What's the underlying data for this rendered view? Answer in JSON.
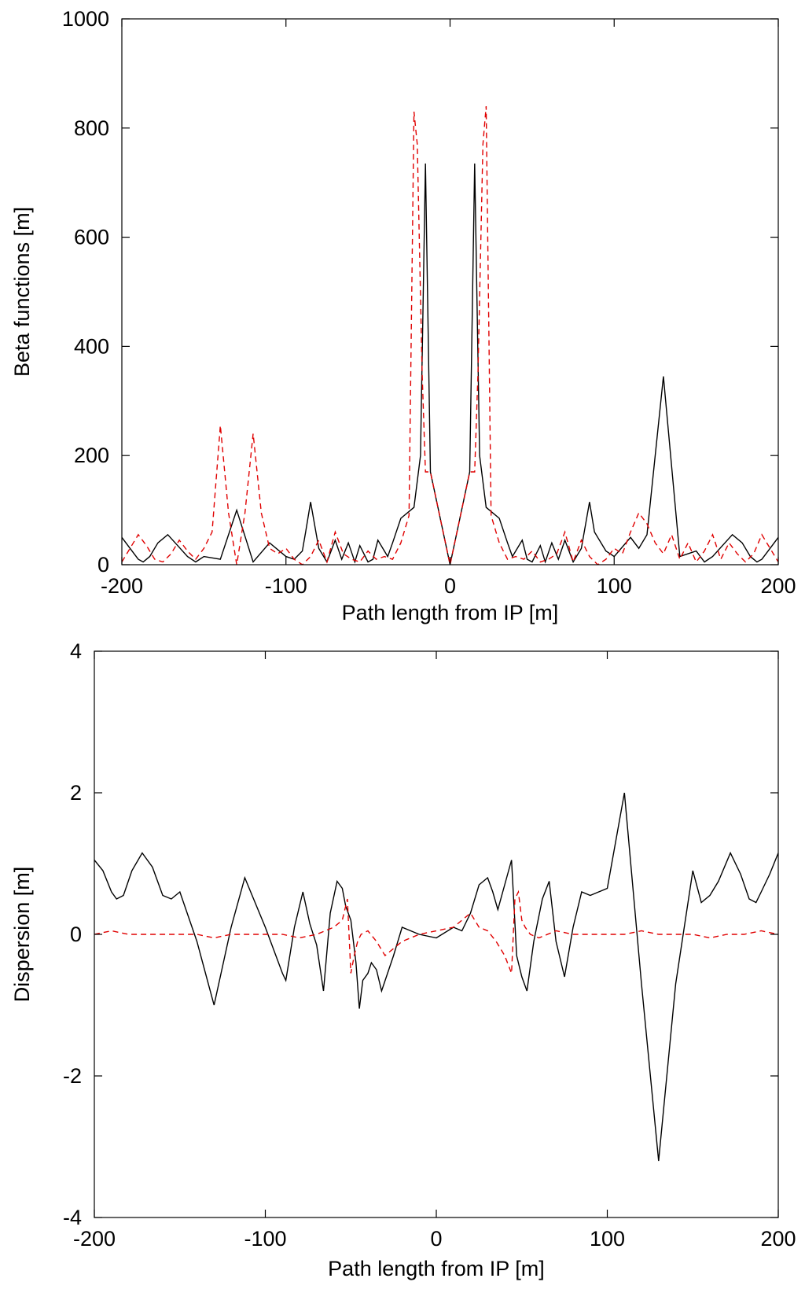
{
  "colors": {
    "solid_series": "#000000",
    "dashed_series": "#e00000"
  },
  "chart_data": [
    {
      "type": "line",
      "xlabel": "Path length from IP [m]",
      "ylabel": "Beta functions [m]",
      "xlim": [
        -200,
        200
      ],
      "ylim": [
        0,
        1000
      ],
      "xticks": [
        -200,
        -100,
        0,
        100,
        200
      ],
      "yticks": [
        0,
        200,
        400,
        600,
        800,
        1000
      ],
      "grid": false,
      "series": [
        {
          "style": "solid",
          "color": "#000000",
          "x": [
            -200,
            -195,
            -190,
            -187,
            -183,
            -178,
            -172,
            -166,
            -160,
            -155,
            -150,
            -140,
            -130,
            -120,
            -110,
            -100,
            -95,
            -90,
            -88,
            -85,
            -80,
            -75,
            -70,
            -66,
            -62,
            -58,
            -55,
            -50,
            -47,
            -44,
            -40,
            -38,
            -35,
            -30,
            -22,
            -18,
            -15,
            -12,
            0,
            12,
            15,
            18,
            22,
            30,
            35,
            38,
            40,
            44,
            47,
            50,
            55,
            58,
            62,
            66,
            70,
            75,
            80,
            85,
            88,
            95,
            100,
            110,
            115,
            120,
            130,
            140,
            150,
            155,
            160,
            166,
            172,
            178,
            183,
            187,
            190,
            195,
            200
          ],
          "y": [
            50,
            30,
            10,
            5,
            15,
            40,
            55,
            35,
            15,
            5,
            15,
            10,
            100,
            5,
            40,
            15,
            10,
            25,
            60,
            115,
            30,
            5,
            45,
            10,
            40,
            5,
            35,
            5,
            10,
            45,
            25,
            15,
            40,
            85,
            105,
            200,
            735,
            170,
            0,
            170,
            735,
            200,
            105,
            85,
            40,
            15,
            25,
            45,
            10,
            5,
            35,
            5,
            40,
            10,
            45,
            5,
            30,
            115,
            60,
            25,
            15,
            50,
            30,
            55,
            345,
            15,
            25,
            5,
            15,
            35,
            55,
            40,
            15,
            5,
            10,
            30,
            50
          ]
        },
        {
          "style": "dashed",
          "color": "#e00000",
          "x": [
            -200,
            -195,
            -190,
            -185,
            -180,
            -175,
            -170,
            -165,
            -160,
            -155,
            -150,
            -145,
            -140,
            -135,
            -130,
            -125,
            -120,
            -115,
            -110,
            -105,
            -100,
            -95,
            -90,
            -85,
            -80,
            -75,
            -70,
            -65,
            -60,
            -55,
            -50,
            -45,
            -40,
            -35,
            -30,
            -25,
            -22,
            -20,
            -17,
            -15,
            -12,
            0,
            12,
            15,
            17,
            20,
            22,
            25,
            30,
            35,
            40,
            45,
            50,
            55,
            60,
            65,
            70,
            75,
            80,
            85,
            90,
            95,
            100,
            105,
            110,
            115,
            120,
            125,
            130,
            135,
            140,
            145,
            150,
            155,
            160,
            165,
            170,
            175,
            180,
            185,
            190,
            195,
            200
          ],
          "y": [
            5,
            30,
            55,
            35,
            10,
            5,
            20,
            45,
            25,
            10,
            30,
            60,
            255,
            95,
            0,
            95,
            240,
            95,
            30,
            20,
            30,
            10,
            0,
            15,
            45,
            5,
            60,
            20,
            10,
            5,
            25,
            10,
            15,
            10,
            40,
            90,
            830,
            770,
            350,
            170,
            170,
            0,
            170,
            170,
            350,
            770,
            840,
            90,
            40,
            10,
            15,
            10,
            25,
            5,
            10,
            20,
            60,
            5,
            45,
            15,
            0,
            10,
            30,
            20,
            60,
            95,
            75,
            40,
            20,
            55,
            10,
            40,
            5,
            25,
            55,
            10,
            40,
            20,
            5,
            20,
            55,
            30,
            5
          ]
        }
      ]
    },
    {
      "type": "line",
      "xlabel": "Path length from IP [m]",
      "ylabel": "Dispersion [m]",
      "xlim": [
        -200,
        200
      ],
      "ylim": [
        -4,
        4
      ],
      "xticks": [
        -200,
        -100,
        0,
        100,
        200
      ],
      "yticks": [
        -4,
        -2,
        0,
        2,
        4
      ],
      "grid": false,
      "series": [
        {
          "style": "solid",
          "color": "#000000",
          "x": [
            -200,
            -195,
            -190,
            -187,
            -183,
            -178,
            -172,
            -166,
            -160,
            -155,
            -150,
            -140,
            -130,
            -120,
            -112,
            -100,
            -90,
            -88,
            -83,
            -78,
            -74,
            -70,
            -66,
            -62,
            -58,
            -55,
            -53,
            -50,
            -47,
            -45,
            -43,
            -40,
            -38,
            -35,
            -32,
            -25,
            -20,
            -15,
            -10,
            0,
            10,
            15,
            20,
            25,
            30,
            33,
            36,
            40,
            44,
            47,
            50,
            53,
            57,
            62,
            66,
            70,
            75,
            80,
            85,
            90,
            95,
            100,
            110,
            120,
            130,
            140,
            150,
            155,
            160,
            165,
            172,
            178,
            183,
            187,
            190,
            195,
            200
          ],
          "y": [
            1.05,
            0.9,
            0.6,
            0.5,
            0.55,
            0.9,
            1.15,
            0.95,
            0.55,
            0.5,
            0.6,
            -0.1,
            -1.0,
            0.1,
            0.8,
            0.1,
            -0.55,
            -0.65,
            0.1,
            0.6,
            0.15,
            -0.15,
            -0.8,
            0.3,
            0.75,
            0.65,
            0.4,
            0.2,
            -0.4,
            -1.05,
            -0.65,
            -0.55,
            -0.4,
            -0.5,
            -0.8,
            -0.3,
            0.1,
            0.05,
            0.0,
            -0.05,
            0.1,
            0.05,
            0.3,
            0.7,
            0.8,
            0.6,
            0.35,
            0.7,
            1.05,
            -0.3,
            -0.6,
            -0.8,
            -0.1,
            0.5,
            0.75,
            -0.1,
            -0.6,
            0.1,
            0.6,
            0.55,
            0.6,
            0.65,
            2.0,
            -0.7,
            -3.2,
            -0.7,
            0.9,
            0.45,
            0.55,
            0.75,
            1.15,
            0.85,
            0.5,
            0.45,
            0.6,
            0.85,
            1.15
          ],
          "_ignore": ""
        },
        {
          "style": "dashed",
          "color": "#e00000",
          "x": [
            -200,
            -190,
            -180,
            -170,
            -160,
            -150,
            -140,
            -130,
            -120,
            -110,
            -100,
            -90,
            -80,
            -70,
            -60,
            -55,
            -52,
            -50,
            -48,
            -46,
            -44,
            -40,
            -35,
            -30,
            -25,
            -20,
            -15,
            -10,
            0,
            10,
            15,
            20,
            25,
            30,
            35,
            40,
            44,
            46,
            48,
            50,
            52,
            55,
            60,
            70,
            80,
            90,
            100,
            110,
            120,
            130,
            140,
            150,
            160,
            170,
            180,
            190,
            200
          ],
          "y": [
            0.0,
            0.05,
            0.0,
            0.0,
            0.0,
            0.0,
            0.0,
            -0.05,
            0.0,
            0.0,
            0.0,
            0.0,
            -0.05,
            0.0,
            0.1,
            0.2,
            0.5,
            -0.55,
            -0.3,
            -0.1,
            0.0,
            0.05,
            -0.1,
            -0.3,
            -0.2,
            -0.1,
            -0.05,
            0.0,
            0.05,
            0.1,
            0.2,
            0.3,
            0.1,
            0.05,
            -0.1,
            -0.3,
            -0.55,
            0.5,
            0.6,
            0.2,
            0.1,
            0.0,
            -0.05,
            0.05,
            0.0,
            0.0,
            0.0,
            0.0,
            0.05,
            0.0,
            0.0,
            0.0,
            -0.05,
            0.0,
            0.0,
            0.05,
            0.0
          ]
        }
      ]
    }
  ]
}
